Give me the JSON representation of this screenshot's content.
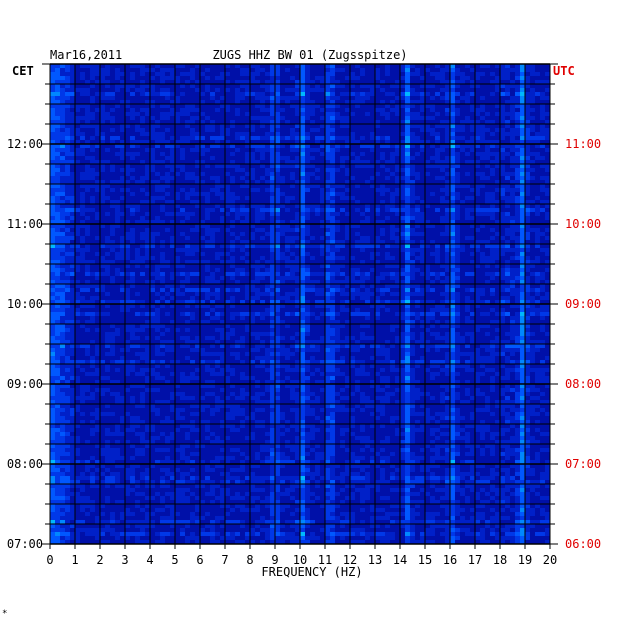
{
  "chart_data": {
    "type": "heatmap",
    "title": "ZUGS HHZ BW 01 (Zugsspitze)",
    "date": "Mar16,2011",
    "xlabel": "FREQUENCY (HZ)",
    "xlim": [
      0,
      20
    ],
    "x_ticks": [
      "0",
      "1",
      "2",
      "3",
      "4",
      "5",
      "6",
      "7",
      "8",
      "9",
      "10",
      "11",
      "12",
      "13",
      "14",
      "15",
      "16",
      "17",
      "18",
      "19",
      "20"
    ],
    "left_axis_label": "CET",
    "right_axis_label": "UTC",
    "left_ticks": [
      "07:00",
      "08:00",
      "09:00",
      "10:00",
      "11:00",
      "12:00"
    ],
    "right_ticks": [
      "06:00",
      "07:00",
      "08:00",
      "09:00",
      "10:00",
      "11:00"
    ],
    "time_range_cet_hours": [
      7,
      13
    ],
    "colors": {
      "background": "#0010a8",
      "grid": "#000000",
      "utc": "#e00000",
      "axis_text": "#000000"
    },
    "persistent_frequency_lines_hz": [
      9.0,
      10.1,
      11.2,
      14.3,
      16.1,
      18.9
    ],
    "footer_mark": "*"
  }
}
